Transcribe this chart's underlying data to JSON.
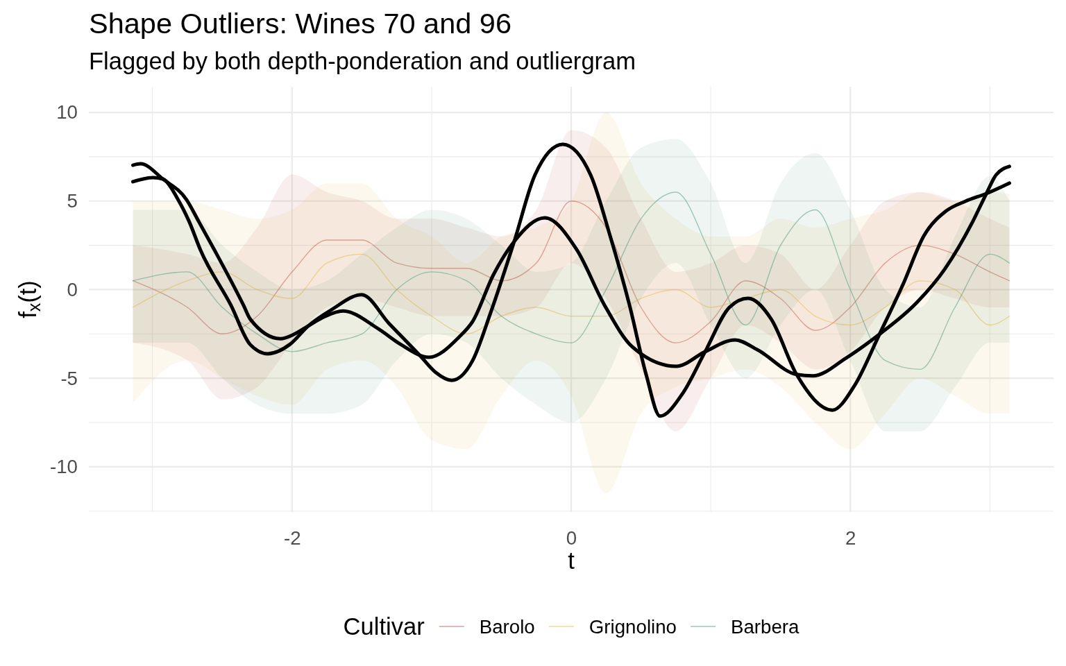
{
  "chart_data": {
    "type": "line",
    "title": "Shape Outliers: Wines 70 and 96",
    "subtitle": "Flagged by both depth-ponderation and outliergram",
    "xlabel": "t",
    "ylabel": "f$_{x}$(t)",
    "legend_title": "Cultivar",
    "legend": "bottom",
    "grid": true,
    "xlim": [
      -3.456,
      3.456
    ],
    "ylim": [
      -12.55,
      11.45
    ],
    "xticks": [
      {
        "value": -3,
        "label": null
      },
      -2,
      {
        "value": -1,
        "label": null
      },
      0,
      {
        "value": 1,
        "label": null
      },
      2,
      {
        "value": 3,
        "label": null
      }
    ],
    "yticks": [
      {
        "value": -12.5,
        "label": null
      },
      -10,
      {
        "value": -7.5,
        "label": null
      },
      -5,
      {
        "value": -2.5,
        "label": null
      },
      0,
      {
        "value": 2.5,
        "label": null
      },
      5,
      {
        "value": 7.5,
        "label": null
      },
      10
    ],
    "x": [
      -3.14,
      -2.75,
      -2.5,
      -2.25,
      -2,
      -1.75,
      -1.5,
      -1.25,
      -1,
      -0.75,
      -0.5,
      -0.25,
      0,
      0.25,
      0.5,
      0.75,
      1,
      1.25,
      1.5,
      1.75,
      2,
      2.25,
      2.5,
      2.75,
      3,
      3.14
    ],
    "series": [
      {
        "name": "Barolo",
        "color": "#b5423b",
        "values": [
          0.5,
          -1,
          -2.5,
          -1.5,
          1,
          2.8,
          2.8,
          1.5,
          1.2,
          1.2,
          0.5,
          1.5,
          5,
          3.5,
          -1,
          -3,
          -1.8,
          0.5,
          -0.5,
          -2.3,
          -1,
          1.5,
          2.5,
          2,
          1,
          0.5
        ],
        "lower": [
          -3,
          -4,
          -6.2,
          -5.5,
          -3,
          -1,
          -0.5,
          -1,
          -1.5,
          -1.5,
          -1.5,
          -1,
          1.5,
          -0.5,
          -4.5,
          -8,
          -5,
          -2,
          -3,
          -4.5,
          -3.5,
          -1,
          0,
          -0.5,
          -1,
          -1
        ],
        "upper": [
          2.5,
          2,
          1.5,
          3.5,
          6.5,
          5.5,
          5,
          4,
          4,
          3.5,
          3,
          4.5,
          9,
          8,
          4,
          1,
          1.5,
          2.5,
          2,
          0,
          2.5,
          5,
          5.5,
          5,
          4,
          3.5
        ]
      },
      {
        "name": "Grignolino",
        "color": "#e8b33a",
        "values": [
          -1,
          0.5,
          1,
          0,
          -0.5,
          1.5,
          2,
          0,
          -1.5,
          -2.5,
          -1.5,
          -1,
          -1.5,
          -1.5,
          -0.5,
          0,
          -1,
          -0.5,
          0,
          -1.5,
          -2,
          -1,
          0.5,
          0,
          -2,
          -1.5
        ],
        "lower": [
          -6.4,
          -4,
          -5,
          -6,
          -6.5,
          -4.5,
          -4,
          -5.5,
          -8.5,
          -9,
          -6,
          -4,
          -6,
          -11.5,
          -7,
          -5.5,
          -5,
          -4.5,
          -5.5,
          -7.5,
          -9,
          -7,
          -5,
          -6,
          -7,
          -7
        ],
        "upper": [
          5,
          5,
          4.5,
          4,
          4.5,
          6,
          6,
          4,
          3,
          1.5,
          3,
          3.5,
          5,
          10,
          6,
          4,
          3,
          3,
          4,
          3.5,
          4,
          4.5,
          5.5,
          5,
          5.5,
          5.4
        ]
      },
      {
        "name": "Barbera",
        "color": "#3e8e73",
        "values": [
          0.5,
          1,
          -1,
          -2.5,
          -3.5,
          -3,
          -2.5,
          0,
          1,
          0.5,
          -1.5,
          -2.5,
          -3,
          0,
          4,
          5.5,
          2,
          -2,
          2.5,
          4.5,
          0,
          -4,
          -4.5,
          -1,
          2,
          1.5
        ],
        "lower": [
          -3,
          -3,
          -5,
          -6.5,
          -7,
          -7,
          -6.5,
          -4,
          -2.5,
          -3,
          -5,
          -6.5,
          -7.5,
          -5,
          -0.5,
          1.5,
          -2,
          -5,
          -2,
          0,
          -4,
          -8,
          -8,
          -5.5,
          -3,
          -3
        ],
        "upper": [
          4.5,
          4.5,
          2.5,
          1,
          0,
          0.5,
          2,
          3.5,
          4.5,
          4,
          2.5,
          1,
          1.5,
          5,
          8,
          8.5,
          6,
          1.5,
          6,
          7.7,
          4.5,
          0,
          -1,
          3,
          6.4,
          5
        ]
      },
      {
        "color": "#000000",
        "x": [
          -3.14,
          -2.995,
          -2.925,
          -2.816,
          -2.736,
          -2.657,
          -2.438,
          -2.3,
          -2.174,
          -2.017,
          -1.884,
          -1.718,
          -1.502,
          -1.303,
          -1.08,
          -0.971,
          -0.856,
          -0.706,
          -0.577,
          -0.408,
          -0.259,
          -0.06,
          0.139,
          0.279,
          0.418,
          0.537,
          0.637,
          0.796,
          0.96,
          1.134,
          1.267,
          1.433,
          1.615,
          1.871,
          2.03,
          2.209,
          2.378,
          2.527,
          2.687,
          2.826,
          2.975,
          3.14
        ],
        "values": [
          6.09,
          6.32,
          6.24,
          5.07,
          3.82,
          2.25,
          -0.88,
          -3.1,
          -3.62,
          -3.1,
          -2.05,
          -1.14,
          -0.29,
          -1.93,
          -3.75,
          -4.67,
          -5.12,
          -4.0,
          -1.3,
          2.72,
          6.48,
          8.2,
          6.48,
          3.03,
          -0.88,
          -4.79,
          -7.14,
          -5.89,
          -3.5,
          -1.0,
          -0.49,
          -1.66,
          -4.79,
          -6.8,
          -5.42,
          -2.52,
          0.3,
          3.03,
          4.44,
          4.99,
          5.42,
          6.01
        ]
      },
      {
        "color": "#000000",
        "x": [
          -3.14,
          -3.085,
          -2.925,
          -2.756,
          -2.667,
          -2.557,
          -2.348,
          -2.3,
          -2.083,
          -1.983,
          -1.884,
          -1.768,
          -1.635,
          -1.386,
          -1.22,
          -1.02,
          -0.806,
          -0.706,
          -0.557,
          -0.408,
          -0.189,
          0.04,
          0.239,
          0.438,
          0.753,
          0.96,
          1.174,
          1.333,
          1.615,
          1.731,
          1.97,
          2.209,
          2.478,
          2.677,
          2.876,
          2.975,
          3.045,
          3.14
        ],
        "values": [
          7.02,
          7.1,
          6.24,
          5.07,
          3.82,
          2.25,
          -0.88,
          -1.66,
          -2.77,
          -2.51,
          -2.05,
          -1.53,
          -1.21,
          -2.19,
          -3.1,
          -3.82,
          -2.7,
          -1.8,
          0.84,
          2.72,
          4.05,
          2.25,
          -0.88,
          -3.23,
          -4.33,
          -3.5,
          -2.84,
          -3.39,
          -4.79,
          -4.87,
          -3.86,
          -2.52,
          -0.72,
          1.16,
          3.82,
          5.42,
          6.48,
          6.95
        ]
      }
    ]
  }
}
